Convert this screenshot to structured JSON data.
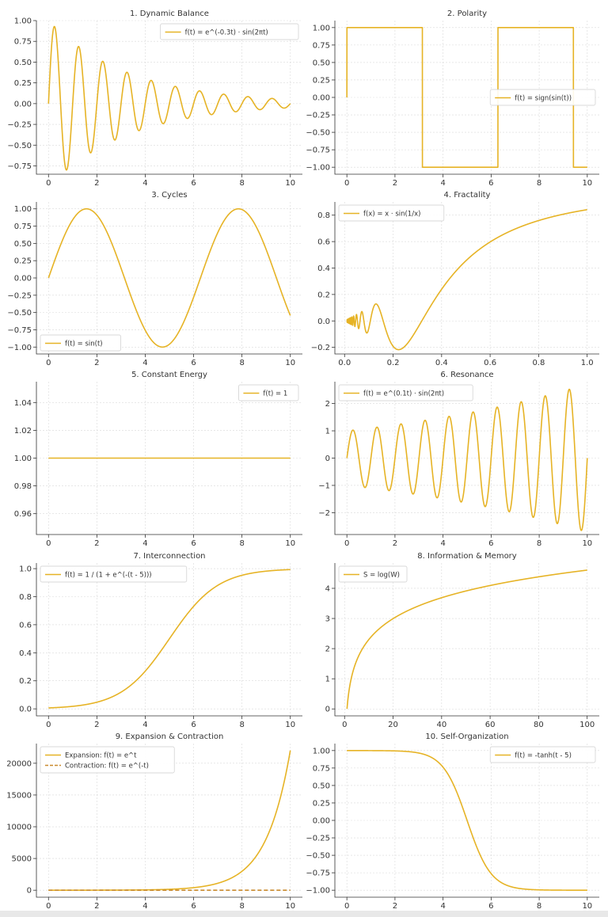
{
  "chart_data": [
    {
      "type": "line",
      "title": "1. Dynamic Balance",
      "func": "damped_sine",
      "x_range": [
        0,
        10
      ],
      "xlim": [
        -0.5,
        10.5
      ],
      "ylim": [
        -0.85,
        1.0
      ],
      "x_ticks": [
        0,
        2,
        4,
        6,
        8,
        10
      ],
      "y_ticks": [
        -0.75,
        -0.5,
        -0.25,
        0.0,
        0.25,
        0.5,
        0.75,
        1.0
      ],
      "tick_decimals": 2,
      "legend_loc": "upper-right",
      "series": [
        {
          "name": "f(t) = e^(-0.3t) · sin(2πt)",
          "color": "#E6B325",
          "dashed": false
        }
      ]
    },
    {
      "type": "line",
      "title": "2. Polarity",
      "func": "sign_sin",
      "x_range": [
        0,
        10
      ],
      "xlim": [
        -0.5,
        10.5
      ],
      "ylim": [
        -1.1,
        1.1
      ],
      "x_ticks": [
        0,
        2,
        4,
        6,
        8,
        10
      ],
      "y_ticks": [
        -1.0,
        -0.75,
        -0.5,
        -0.25,
        0.0,
        0.25,
        0.5,
        0.75,
        1.0
      ],
      "tick_decimals": 2,
      "legend_loc": "center-right",
      "series": [
        {
          "name": "f(t) = sign(sin(t))",
          "color": "#E6B325",
          "dashed": false
        }
      ]
    },
    {
      "type": "line",
      "title": "3. Cycles",
      "func": "sine",
      "x_range": [
        0,
        10
      ],
      "xlim": [
        -0.5,
        10.5
      ],
      "ylim": [
        -1.1,
        1.1
      ],
      "x_ticks": [
        0,
        2,
        4,
        6,
        8,
        10
      ],
      "y_ticks": [
        -1.0,
        -0.75,
        -0.5,
        -0.25,
        0.0,
        0.25,
        0.5,
        0.75,
        1.0
      ],
      "tick_decimals": 2,
      "legend_loc": "lower-left",
      "series": [
        {
          "name": "f(t) = sin(t)",
          "color": "#E6B325",
          "dashed": false
        }
      ]
    },
    {
      "type": "line",
      "title": "4. Fractality",
      "func": "x_sin_inv",
      "x_range": [
        0.01,
        1.0
      ],
      "xlim": [
        -0.04,
        1.05
      ],
      "ylim": [
        -0.25,
        0.9
      ],
      "x_ticks": [
        0.0,
        0.2,
        0.4,
        0.6,
        0.8,
        1.0
      ],
      "y_ticks": [
        -0.2,
        0.0,
        0.2,
        0.4,
        0.6,
        0.8
      ],
      "tick_decimals": 1,
      "x_tick_decimals": 1,
      "legend_loc": "upper-left",
      "series": [
        {
          "name": "f(x) = x · sin(1/x)",
          "color": "#E6B325",
          "dashed": false
        }
      ]
    },
    {
      "type": "line",
      "title": "5. Constant Energy",
      "func": "constant",
      "x_range": [
        0,
        10
      ],
      "xlim": [
        -0.5,
        10.5
      ],
      "ylim": [
        0.945,
        1.055
      ],
      "x_ticks": [
        0,
        2,
        4,
        6,
        8,
        10
      ],
      "y_ticks": [
        0.96,
        0.98,
        1.0,
        1.02,
        1.04
      ],
      "tick_decimals": 2,
      "legend_loc": "upper-right",
      "series": [
        {
          "name": "f(t) = 1",
          "color": "#E6B325",
          "dashed": false
        }
      ]
    },
    {
      "type": "line",
      "title": "6. Resonance",
      "func": "growing_sine",
      "x_range": [
        0,
        10
      ],
      "xlim": [
        -0.5,
        10.5
      ],
      "ylim": [
        -2.8,
        2.8
      ],
      "x_ticks": [
        0,
        2,
        4,
        6,
        8,
        10
      ],
      "y_ticks": [
        -2,
        -1,
        0,
        1,
        2
      ],
      "tick_decimals": 0,
      "legend_loc": "upper-left",
      "series": [
        {
          "name": "f(t) = e^(0.1t) · sin(2πt)",
          "color": "#E6B325",
          "dashed": false
        }
      ]
    },
    {
      "type": "line",
      "title": "7. Interconnection",
      "func": "logistic",
      "x_range": [
        0,
        10
      ],
      "xlim": [
        -0.5,
        10.5
      ],
      "ylim": [
        -0.05,
        1.04
      ],
      "x_ticks": [
        0,
        2,
        4,
        6,
        8,
        10
      ],
      "y_ticks": [
        0.0,
        0.2,
        0.4,
        0.6,
        0.8,
        1.0
      ],
      "tick_decimals": 1,
      "legend_loc": "upper-left",
      "series": [
        {
          "name": "f(t) = 1 / (1 + e^(-(t - 5)))",
          "color": "#E6B325",
          "dashed": false
        }
      ]
    },
    {
      "type": "line",
      "title": "8. Information & Memory",
      "func": "log",
      "x_range": [
        1,
        100
      ],
      "xlim": [
        -4,
        105
      ],
      "ylim": [
        -0.23,
        4.84
      ],
      "x_ticks": [
        0,
        20,
        40,
        60,
        80,
        100
      ],
      "y_ticks": [
        0,
        1,
        2,
        3,
        4
      ],
      "tick_decimals": 0,
      "legend_loc": "upper-left",
      "series": [
        {
          "name": "S = log(W)",
          "color": "#E6B325",
          "dashed": false
        }
      ]
    },
    {
      "type": "line",
      "title": "9. Expansion & Contraction",
      "func": "exp_pair",
      "x_range": [
        0,
        10
      ],
      "xlim": [
        -0.5,
        10.5
      ],
      "ylim": [
        -1100,
        23100
      ],
      "x_ticks": [
        0,
        2,
        4,
        6,
        8,
        10
      ],
      "y_ticks": [
        0,
        5000,
        10000,
        15000,
        20000
      ],
      "tick_decimals": 0,
      "legend_loc": "upper-left",
      "series": [
        {
          "name": "Expansion: f(t) = e^t",
          "color": "#E6B325",
          "dashed": false
        },
        {
          "name": "Contraction: f(t) = e^(-t)",
          "color": "#C98A2E",
          "dashed": true
        }
      ]
    },
    {
      "type": "line",
      "title": "10. Self-Organization",
      "func": "neg_tanh",
      "x_range": [
        0,
        10
      ],
      "xlim": [
        -0.5,
        10.5
      ],
      "ylim": [
        -1.1,
        1.1
      ],
      "x_ticks": [
        0,
        2,
        4,
        6,
        8,
        10
      ],
      "y_ticks": [
        -1.0,
        -0.75,
        -0.5,
        -0.25,
        0.0,
        0.25,
        0.5,
        0.75,
        1.0
      ],
      "tick_decimals": 2,
      "legend_loc": "upper-right",
      "series": [
        {
          "name": "f(t) = -tanh(t - 5)",
          "color": "#E6B325",
          "dashed": false
        }
      ]
    }
  ]
}
